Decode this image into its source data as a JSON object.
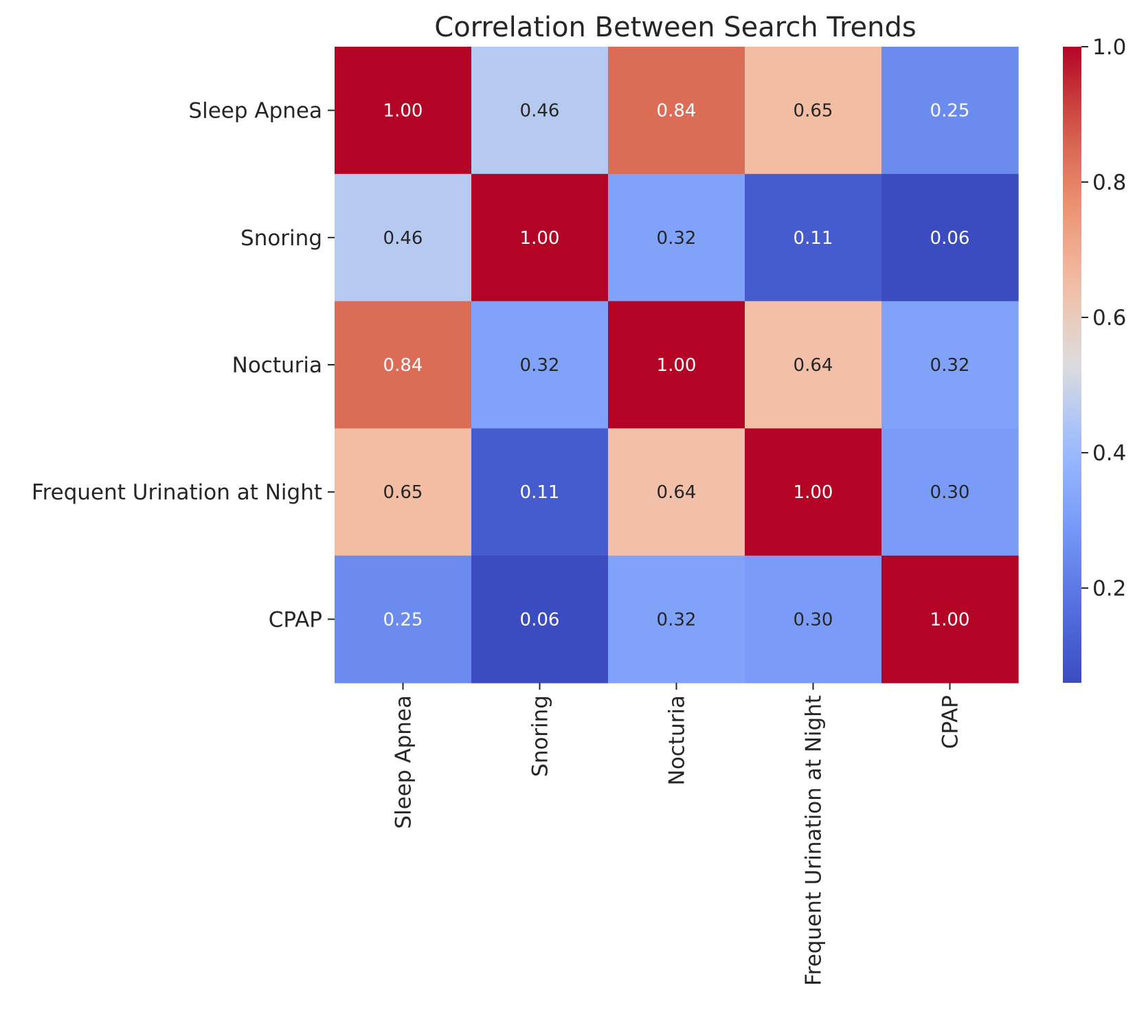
{
  "chart_data": {
    "type": "heatmap",
    "title": "Correlation Between Search Trends",
    "xlabel": "",
    "ylabel": "",
    "row_labels": [
      "Sleep Apnea",
      "Snoring",
      "Nocturia",
      "Frequent Urination at Night",
      "CPAP"
    ],
    "col_labels": [
      "Sleep Apnea",
      "Snoring",
      "Nocturia",
      "Frequent Urination at Night",
      "CPAP"
    ],
    "values": [
      [
        1.0,
        0.46,
        0.84,
        0.65,
        0.25
      ],
      [
        0.46,
        1.0,
        0.32,
        0.11,
        0.06
      ],
      [
        0.84,
        0.32,
        1.0,
        0.64,
        0.32
      ],
      [
        0.65,
        0.11,
        0.64,
        1.0,
        0.3
      ],
      [
        0.25,
        0.06,
        0.32,
        0.3,
        1.0
      ]
    ],
    "value_format": "0.00",
    "colormap": "coolwarm",
    "color_range": [
      0.06,
      1.0
    ],
    "colorbar_ticks": [
      "0.2",
      "0.4",
      "0.6",
      "0.8",
      "1.0"
    ],
    "colorbar_tick_values": [
      0.2,
      0.4,
      0.6,
      0.8,
      1.0
    ],
    "grid": false,
    "legend": "colorbar-right"
  },
  "colors": {
    "text": "#262626",
    "annotation_dark": "#262626",
    "annotation_light": "#ffffff"
  }
}
